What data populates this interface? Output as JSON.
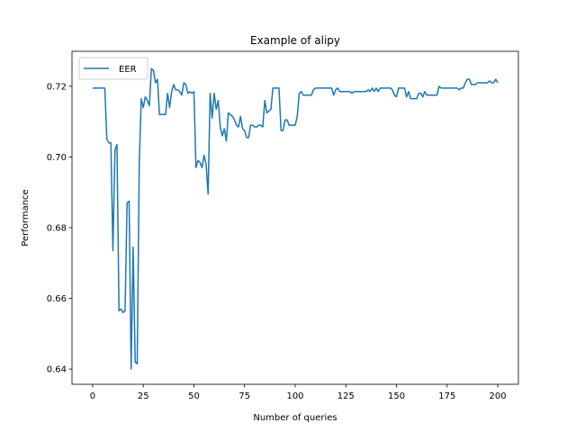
{
  "chart_data": {
    "type": "line",
    "title": "Example of alipy",
    "xlabel": "Number of queries",
    "ylabel": "Performance",
    "legend": "upper left",
    "x": [
      0,
      1,
      2,
      3,
      4,
      5,
      6,
      7,
      8,
      9,
      10,
      11,
      12,
      13,
      14,
      15,
      16,
      17,
      18,
      19,
      20,
      21,
      22,
      23,
      24,
      25,
      26,
      27,
      28,
      29,
      30,
      31,
      32,
      33,
      34,
      35,
      36,
      37,
      38,
      39,
      40,
      41,
      42,
      43,
      44,
      45,
      46,
      47,
      48,
      49,
      50,
      51,
      52,
      53,
      54,
      55,
      56,
      57,
      58,
      59,
      60,
      61,
      62,
      63,
      64,
      65,
      66,
      67,
      68,
      69,
      70,
      71,
      72,
      73,
      74,
      75,
      76,
      77,
      78,
      79,
      80,
      81,
      82,
      83,
      84,
      85,
      86,
      87,
      88,
      89,
      90,
      91,
      92,
      93,
      94,
      95,
      96,
      97,
      98,
      99,
      100,
      101,
      102,
      103,
      104,
      105,
      106,
      107,
      108,
      109,
      110,
      111,
      112,
      113,
      114,
      115,
      116,
      117,
      118,
      119,
      120,
      121,
      122,
      123,
      124,
      125,
      126,
      127,
      128,
      129,
      130,
      131,
      132,
      133,
      134,
      135,
      136,
      137,
      138,
      139,
      140,
      141,
      142,
      143,
      144,
      145,
      146,
      147,
      148,
      149,
      150,
      151,
      152,
      153,
      154,
      155,
      156,
      157,
      158,
      159,
      160,
      161,
      162,
      163,
      164,
      165,
      166,
      167,
      168,
      169,
      170,
      171,
      172,
      173,
      174,
      175,
      176,
      177,
      178,
      179,
      180,
      181,
      182,
      183,
      184,
      185,
      186,
      187,
      188,
      189,
      190,
      191,
      192,
      193,
      194,
      195,
      196,
      197,
      198,
      199,
      200
    ],
    "series": [
      {
        "name": "EER",
        "color": "#1f77b4",
        "values": [
          0.7195,
          0.7195,
          0.7195,
          0.7195,
          0.7195,
          0.7195,
          0.7195,
          0.705,
          0.704,
          0.704,
          0.6735,
          0.702,
          0.7035,
          0.6565,
          0.657,
          0.656,
          0.6565,
          0.687,
          0.6875,
          0.64,
          0.6745,
          0.642,
          0.6415,
          0.698,
          0.7165,
          0.714,
          0.717,
          0.716,
          0.7145,
          0.725,
          0.7245,
          0.721,
          0.722,
          0.712,
          0.712,
          0.712,
          0.712,
          0.718,
          0.714,
          0.7185,
          0.7205,
          0.719,
          0.719,
          0.7185,
          0.7175,
          0.721,
          0.7205,
          0.718,
          0.7185,
          0.718,
          0.7185,
          0.697,
          0.699,
          0.6985,
          0.697,
          0.7005,
          0.698,
          0.6895,
          0.718,
          0.711,
          0.718,
          0.7135,
          0.716,
          0.7085,
          0.706,
          0.708,
          0.7045,
          0.7125,
          0.712,
          0.7115,
          0.7105,
          0.709,
          0.7085,
          0.7115,
          0.708,
          0.7075,
          0.7055,
          0.7055,
          0.709,
          0.709,
          0.7085,
          0.7085,
          0.709,
          0.709,
          0.7085,
          0.716,
          0.7125,
          0.713,
          0.7135,
          0.7195,
          0.7195,
          0.7195,
          0.7195,
          0.7075,
          0.7075,
          0.7105,
          0.7105,
          0.709,
          0.709,
          0.709,
          0.709,
          0.7115,
          0.718,
          0.7185,
          0.7175,
          0.7175,
          0.7175,
          0.7175,
          0.7175,
          0.719,
          0.7195,
          0.7195,
          0.7195,
          0.7195,
          0.7195,
          0.7195,
          0.7195,
          0.7195,
          0.7195,
          0.7175,
          0.719,
          0.7195,
          0.7185,
          0.7185,
          0.7185,
          0.7185,
          0.7185,
          0.7185,
          0.718,
          0.7185,
          0.7185,
          0.7185,
          0.7185,
          0.7185,
          0.7185,
          0.7185,
          0.719,
          0.7185,
          0.7195,
          0.7185,
          0.7195,
          0.7185,
          0.7195,
          0.7195,
          0.7195,
          0.7195,
          0.7195,
          0.7195,
          0.719,
          0.7175,
          0.717,
          0.7195,
          0.7195,
          0.7195,
          0.7195,
          0.717,
          0.7185,
          0.7165,
          0.7165,
          0.7165,
          0.7165,
          0.718,
          0.718,
          0.717,
          0.7185,
          0.7175,
          0.7175,
          0.7175,
          0.7175,
          0.7175,
          0.7175,
          0.72,
          0.7195,
          0.7195,
          0.7195,
          0.7195,
          0.7195,
          0.7195,
          0.7195,
          0.7195,
          0.7195,
          0.719,
          0.7195,
          0.7195,
          0.721,
          0.722,
          0.722,
          0.7205,
          0.7205,
          0.7205,
          0.721,
          0.721,
          0.721,
          0.721,
          0.721,
          0.721,
          0.7215,
          0.721,
          0.721,
          0.722,
          0.721
        ]
      }
    ],
    "xlim": [
      -10.2,
      210.2
    ],
    "xticks": [
      0,
      25,
      50,
      75,
      100,
      125,
      150,
      175,
      200
    ],
    "ylim": [
      0.6357,
      0.7299
    ],
    "yticks": [
      0.64,
      0.66,
      0.68,
      {
        "value": 0.7,
        "label": "0.70"
      },
      0.72
    ]
  }
}
